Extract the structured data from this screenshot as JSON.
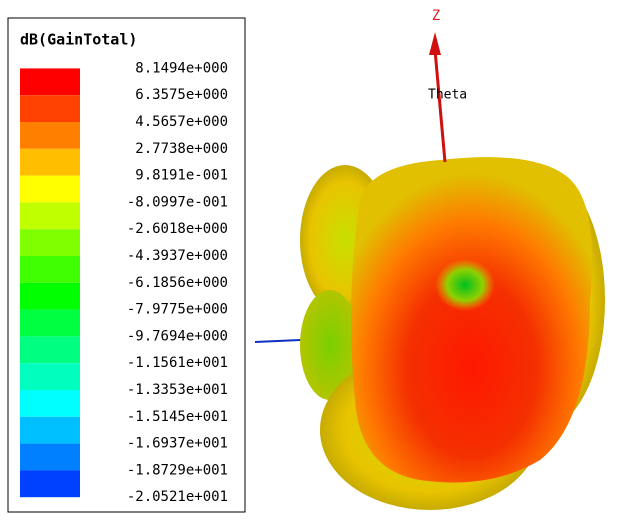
{
  "legend": {
    "title": "dB(GainTotal)",
    "levels": [
      {
        "label": "8.1494e+000",
        "color": "#ff0000"
      },
      {
        "label": "6.3575e+000",
        "color": "#ff4000"
      },
      {
        "label": "4.5657e+000",
        "color": "#ff8000"
      },
      {
        "label": "2.7738e+000",
        "color": "#ffbf00"
      },
      {
        "label": "9.8191e-001",
        "color": "#ffff00"
      },
      {
        "label": "-8.0997e-001",
        "color": "#bfff00"
      },
      {
        "label": "-2.6018e+000",
        "color": "#80ff00"
      },
      {
        "label": "-4.3937e+000",
        "color": "#40ff00"
      },
      {
        "label": "-6.1856e+000",
        "color": "#00ff00"
      },
      {
        "label": "-7.9775e+000",
        "color": "#00ff40"
      },
      {
        "label": "-9.7694e+000",
        "color": "#00ff80"
      },
      {
        "label": "-1.1561e+001",
        "color": "#00ffbf"
      },
      {
        "label": "-1.3353e+001",
        "color": "#00ffff"
      },
      {
        "label": "-1.5145e+001",
        "color": "#00bfff"
      },
      {
        "label": "-1.6937e+001",
        "color": "#0080ff"
      },
      {
        "label": "-1.8729e+001",
        "color": "#0040ff"
      },
      {
        "label": "-2.0521e+001",
        "color": "#0000ff"
      }
    ]
  },
  "axes": {
    "z": "Z",
    "theta": "Theta"
  }
}
